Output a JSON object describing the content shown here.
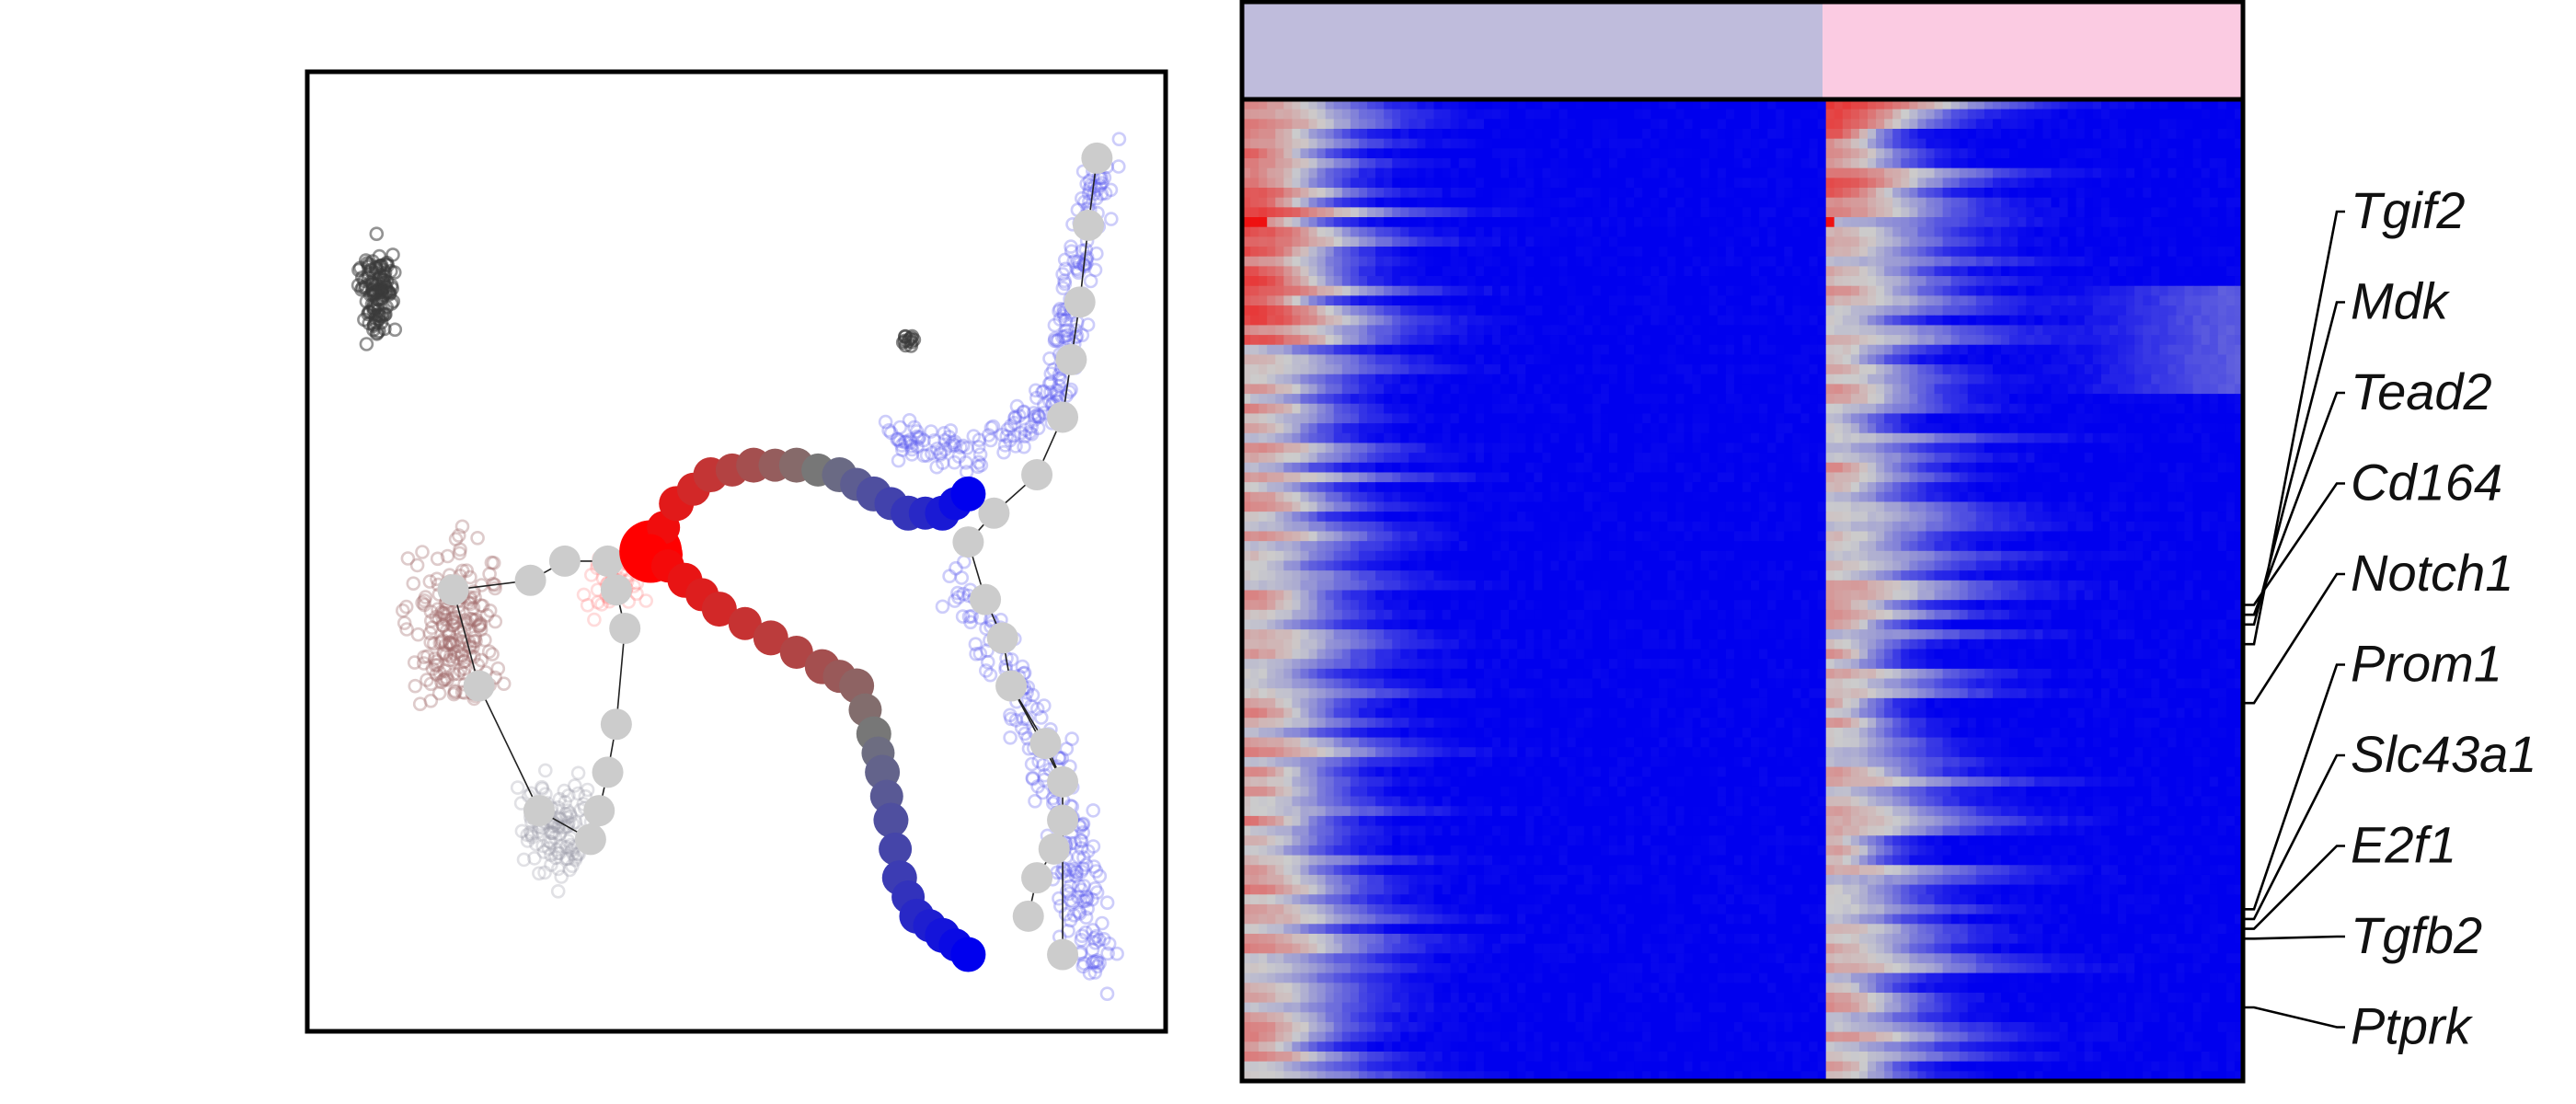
{
  "chart_data": [
    {
      "type": "scatter",
      "title": "",
      "xlabel": "",
      "ylabel": "",
      "grid": false,
      "legend": "none",
      "xlim": [
        0,
        100
      ],
      "ylim": [
        0,
        100
      ],
      "clusters": [
        {
          "name": "dark-gray-cluster",
          "color": "#3a3a3a",
          "opacity": 0.55,
          "cx": 8,
          "cy": 77,
          "rx": 3.5,
          "ry": 7.5,
          "n": 110
        },
        {
          "name": "dark-gray-small-cluster",
          "color": "#3a3a3a",
          "opacity": 0.6,
          "cx": 70,
          "cy": 72,
          "rx": 1.2,
          "ry": 1.0,
          "n": 12
        },
        {
          "name": "brown-cluster",
          "color": "#a06a6a",
          "opacity": 0.35,
          "cx": 17,
          "cy": 43,
          "rx": 8,
          "ry": 13,
          "n": 190
        },
        {
          "name": "light-gray-cluster",
          "color": "#9a9aa8",
          "opacity": 0.3,
          "cx": 29,
          "cy": 21,
          "rx": 7,
          "ry": 8,
          "n": 110
        },
        {
          "name": "light-red-cluster",
          "color": "#ff7070",
          "opacity": 0.25,
          "cx": 36,
          "cy": 47,
          "rx": 5,
          "ry": 5,
          "n": 45
        },
        {
          "name": "blue-upper-arm",
          "color": "#5a5af0",
          "opacity": 0.3,
          "path": [
            [
              68,
              62
            ],
            [
              78,
              60
            ],
            [
              87,
              66
            ],
            [
              90,
              78
            ],
            [
              93,
              92
            ]
          ],
          "spread": 3.2,
          "n": 230
        },
        {
          "name": "blue-lower-arm",
          "color": "#5a5af0",
          "opacity": 0.3,
          "path": [
            [
              76,
              48
            ],
            [
              83,
              35
            ],
            [
              88,
              25
            ],
            [
              90,
              14
            ],
            [
              92,
              5
            ]
          ],
          "spread": 3.8,
          "n": 220
        }
      ],
      "trajectory_nodes": {
        "color": "#cccccc",
        "points": [
          [
            92,
            91
          ],
          [
            91,
            84
          ],
          [
            90,
            76
          ],
          [
            89,
            70
          ],
          [
            88,
            64
          ],
          [
            85,
            58
          ],
          [
            80,
            54
          ],
          [
            77,
            51
          ],
          [
            79,
            45
          ],
          [
            81,
            41
          ],
          [
            82,
            36
          ],
          [
            86,
            30
          ],
          [
            88,
            26
          ],
          [
            88,
            22
          ],
          [
            87,
            19
          ],
          [
            85,
            16
          ],
          [
            84,
            12
          ],
          [
            88,
            8
          ],
          [
            17,
            46
          ],
          [
            26,
            47
          ],
          [
            30,
            49
          ],
          [
            35,
            49
          ],
          [
            36,
            46
          ],
          [
            37,
            42
          ],
          [
            36,
            32
          ],
          [
            35,
            27
          ],
          [
            34,
            23
          ],
          [
            33,
            20
          ],
          [
            27,
            23
          ],
          [
            20,
            36
          ]
        ],
        "edges": [
          [
            0,
            1
          ],
          [
            1,
            2
          ],
          [
            2,
            3
          ],
          [
            3,
            4
          ],
          [
            4,
            5
          ],
          [
            5,
            6
          ],
          [
            6,
            7
          ],
          [
            7,
            8
          ],
          [
            8,
            9
          ],
          [
            9,
            10
          ],
          [
            10,
            11
          ],
          [
            11,
            12
          ],
          [
            12,
            13
          ],
          [
            13,
            14
          ],
          [
            14,
            15
          ],
          [
            15,
            16
          ],
          [
            13,
            17
          ],
          [
            10,
            12
          ],
          [
            18,
            19
          ],
          [
            19,
            20
          ],
          [
            20,
            21
          ],
          [
            21,
            22
          ],
          [
            22,
            23
          ],
          [
            23,
            24
          ],
          [
            24,
            25
          ],
          [
            25,
            26
          ],
          [
            26,
            27
          ],
          [
            27,
            28
          ],
          [
            28,
            29
          ],
          [
            29,
            18
          ]
        ]
      },
      "highlighted_trajectory": {
        "color_start": "#ff0000",
        "color_mid": "#777777",
        "color_end": "#0000ee",
        "root": [
          40,
          50
        ],
        "branches": [
          {
            "name": "upper-branch",
            "points": [
              [
                40,
                50
              ],
              [
                43,
                55
              ],
              [
                47,
                58
              ],
              [
                52,
                59
              ],
              [
                57,
                59
              ],
              [
                62,
                58
              ],
              [
                66,
                56
              ],
              [
                70,
                54
              ],
              [
                74,
                54
              ],
              [
                77,
                56
              ]
            ]
          },
          {
            "name": "lower-branch",
            "points": [
              [
                40,
                50
              ],
              [
                44,
                47
              ],
              [
                48,
                44
              ],
              [
                54,
                41
              ],
              [
                60,
                38
              ],
              [
                64,
                36
              ],
              [
                66,
                31
              ],
              [
                67,
                27
              ],
              [
                68,
                22
              ],
              [
                69,
                16
              ],
              [
                71,
                12
              ],
              [
                74,
                10
              ],
              [
                77,
                8
              ]
            ]
          }
        ]
      }
    },
    {
      "type": "heatmap",
      "title": "",
      "xlabel": "",
      "ylabel": "",
      "n_rows": 100,
      "n_cols": 120,
      "split_fraction": 0.58,
      "color_low": "#0000ee",
      "color_mid": "#cccccc",
      "color_high": "#ee1111",
      "column_annotation": [
        {
          "group": "left",
          "color": "#bfbcdc"
        },
        {
          "group": "right",
          "color": "#fbcbe2"
        }
      ],
      "row_genes": [
        {
          "gene": "Tgif2",
          "row": 55
        },
        {
          "gene": "Mdk",
          "row": 53
        },
        {
          "gene": "Tead2",
          "row": 52
        },
        {
          "gene": "Cd164",
          "row": 51
        },
        {
          "gene": "Notch1",
          "row": 61
        },
        {
          "gene": "Prom1",
          "row": 82
        },
        {
          "gene": "Slc43a1",
          "row": 83
        },
        {
          "gene": "E2f1",
          "row": 84
        },
        {
          "gene": "Tgfb2",
          "row": 85
        },
        {
          "gene": "Ptprk",
          "row": 92
        }
      ]
    }
  ]
}
